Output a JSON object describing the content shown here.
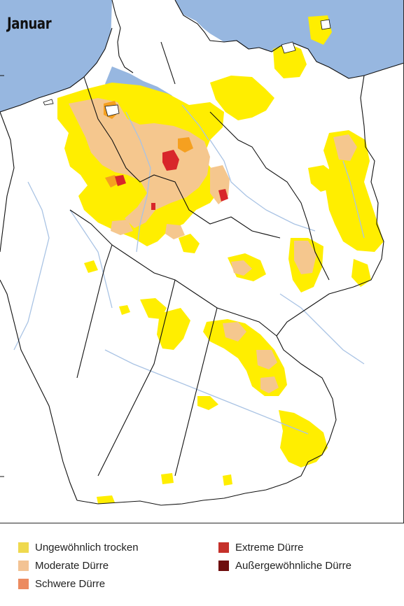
{
  "title": "Januar",
  "legend": [
    {
      "label": "Ungewöhnlich trocken",
      "color": "#efd94e"
    },
    {
      "label": "Moderate Dürre",
      "color": "#f3c394"
    },
    {
      "label": "Schwere Dürre",
      "color": "#ec8b60"
    },
    {
      "label": "Extreme Dürre",
      "color": "#c5302a"
    },
    {
      "label": "Außergewöhnliche Dürre",
      "color": "#6e0d0d"
    }
  ],
  "colors": {
    "sea": "#97b7e0",
    "land": "#ffffff",
    "borders": "#111111",
    "rivers": "#a9c3e4",
    "dry_yellow": "#ffee00",
    "moderate": "#f5c78e",
    "severe": "#f5a020",
    "extreme": "#d8262a"
  }
}
